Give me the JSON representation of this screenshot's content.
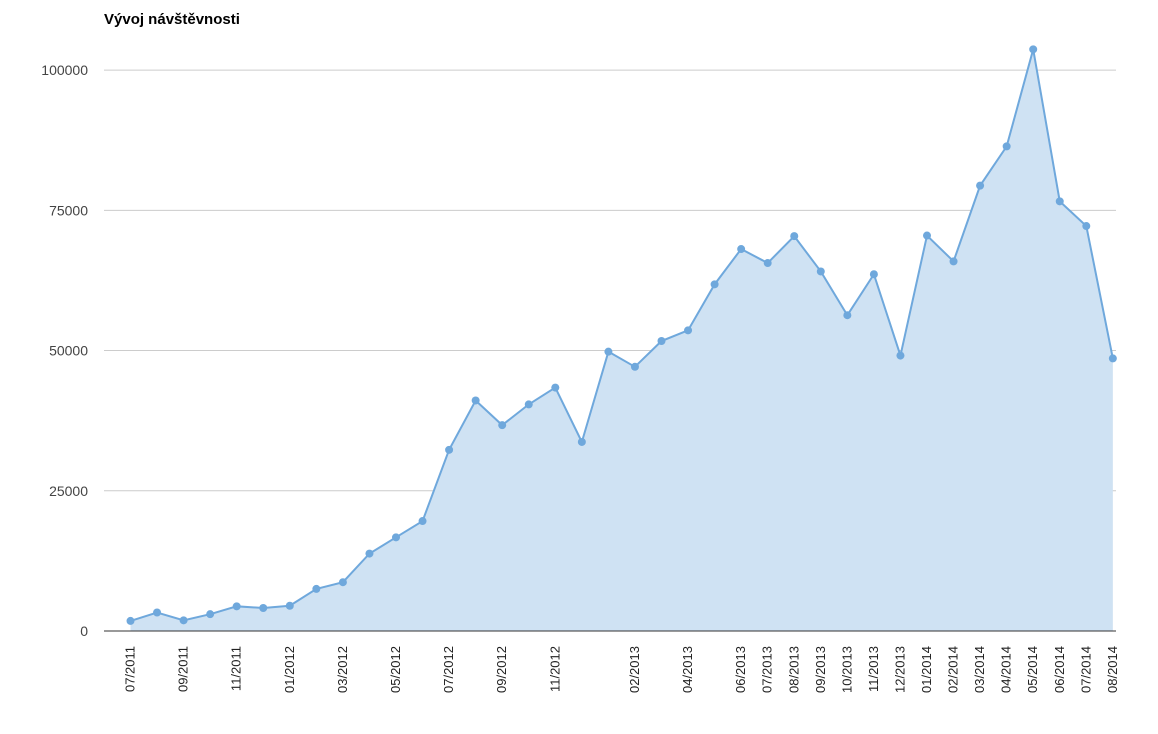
{
  "chart_data": {
    "type": "area",
    "title": "Vývoj návštěvnosti",
    "xlabel": "",
    "ylabel": "",
    "ylim": [
      0,
      110000
    ],
    "yticks": [
      0,
      25000,
      50000,
      75000,
      100000
    ],
    "grid": true,
    "legend": "none",
    "colors": {
      "line": "#6fa8dc",
      "fill": "#cfe2f3",
      "grid": "#cccccc",
      "axis": "#333333"
    },
    "x_labels": [
      "07/2011",
      "09/2011",
      "11/2011",
      "01/2012",
      "03/2012",
      "05/2012",
      "07/2012",
      "09/2012",
      "11/2012",
      "02/2013",
      "04/2013",
      "06/2013",
      "07/2013",
      "08/2013",
      "09/2013",
      "10/2013",
      "11/2013",
      "12/2013",
      "01/2014",
      "02/2014",
      "03/2014",
      "04/2014",
      "05/2014",
      "06/2014",
      "07/2014",
      "08/2014"
    ],
    "series": [
      {
        "points": [
          [
            "2011-07",
            1800
          ],
          [
            "2011-08",
            3300
          ],
          [
            "2011-09",
            1900
          ],
          [
            "2011-10",
            3000
          ],
          [
            "2011-11",
            4400
          ],
          [
            "2011-12",
            4100
          ],
          [
            "2012-01",
            4500
          ],
          [
            "2012-02",
            7500
          ],
          [
            "2012-03",
            8700
          ],
          [
            "2012-04",
            13800
          ],
          [
            "2012-05",
            16700
          ],
          [
            "2012-06",
            19600
          ],
          [
            "2012-07",
            32300
          ],
          [
            "2012-08",
            41100
          ],
          [
            "2012-09",
            36700
          ],
          [
            "2012-10",
            40400
          ],
          [
            "2012-11",
            43400
          ],
          [
            "2012-12",
            33700
          ],
          [
            "2013-01",
            49800
          ],
          [
            "2013-02",
            47100
          ],
          [
            "2013-03",
            51700
          ],
          [
            "2013-04",
            53600
          ],
          [
            "2013-05",
            61800
          ],
          [
            "2013-06",
            68100
          ],
          [
            "2013-07",
            65600
          ],
          [
            "2013-08",
            70400
          ],
          [
            "2013-09",
            64100
          ],
          [
            "2013-10",
            56300
          ],
          [
            "2013-11",
            63600
          ],
          [
            "2013-12",
            49100
          ],
          [
            "2014-01",
            70500
          ],
          [
            "2014-02",
            65900
          ],
          [
            "2014-03",
            79400
          ],
          [
            "2014-04",
            86400
          ],
          [
            "2014-05",
            103700
          ],
          [
            "2014-06",
            76600
          ],
          [
            "2014-07",
            72200
          ],
          [
            "2014-08",
            48600
          ]
        ]
      }
    ]
  }
}
